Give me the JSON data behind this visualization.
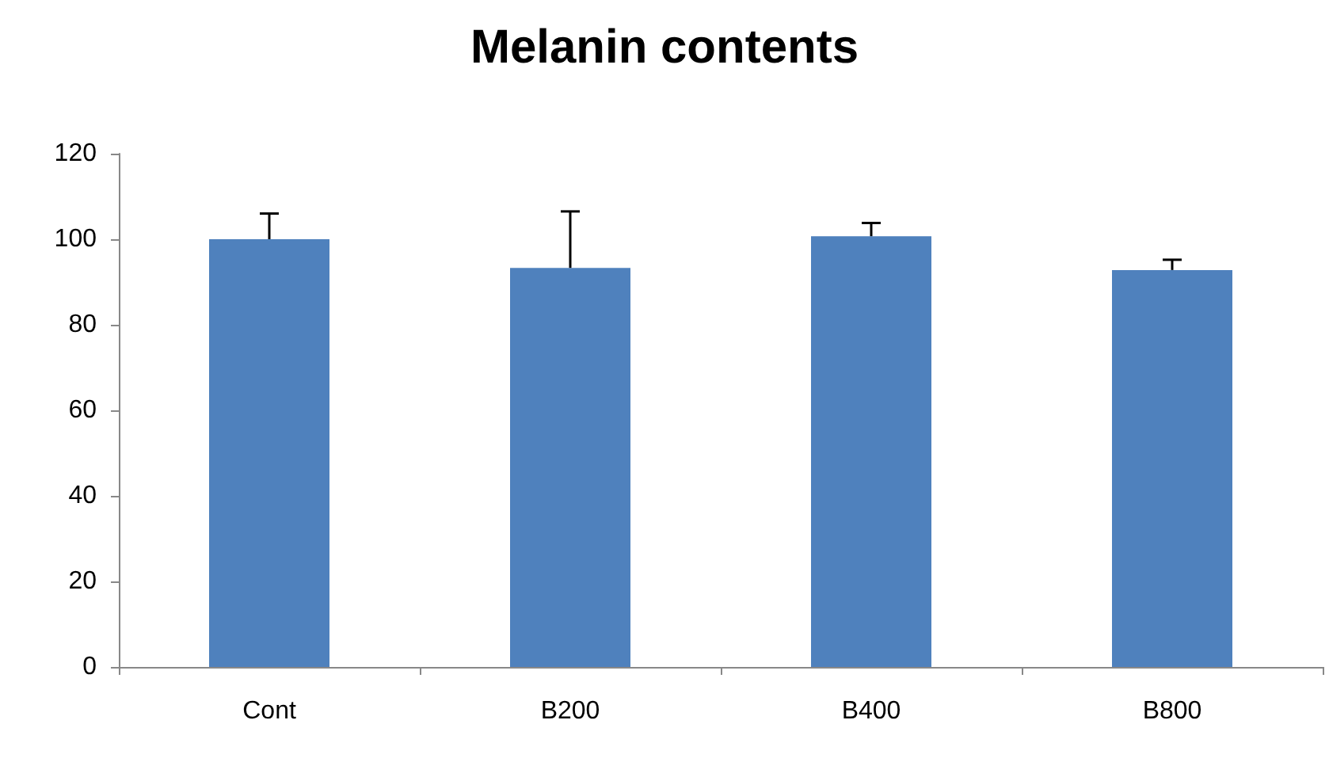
{
  "chart_data": {
    "type": "bar",
    "title": "Melanin contents",
    "categories": [
      "Cont",
      "B200",
      "B400",
      "B800"
    ],
    "values": [
      100,
      93.3,
      100.7,
      92.8
    ],
    "errors": [
      [
        100,
        106
      ],
      [
        93.3,
        106.5
      ],
      [
        100.7,
        103.8
      ],
      [
        92.8,
        95.2
      ]
    ],
    "color": "#4f81bd",
    "ylim": [
      0,
      120
    ],
    "yticks": [
      0,
      20,
      40,
      60,
      80,
      100,
      120
    ],
    "grid": false
  }
}
